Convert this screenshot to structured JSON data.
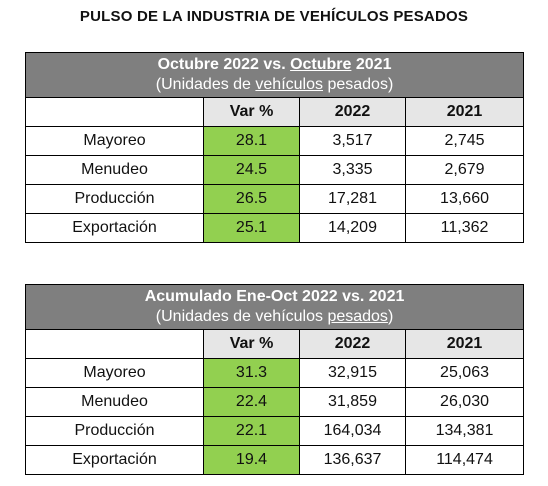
{
  "title": "PULSO DE LA INDUSTRIA DE VEHÍCULOS PESADOS",
  "tables": [
    {
      "title_prefix": "Octubre 2022 vs. ",
      "title_underlined": "Octubre",
      "title_suffix": " 2021",
      "subtitle_prefix": "(Unidades de ",
      "subtitle_underlined": "vehículos",
      "subtitle_suffix": " pesados)",
      "columns": [
        "Var %",
        "2022",
        "2021"
      ],
      "rows": [
        {
          "label": "Mayoreo",
          "var": "28.1",
          "y2022": "3,517",
          "y2021": "2,745"
        },
        {
          "label": "Menudeo",
          "var": "24.5",
          "y2022": "3,335",
          "y2021": "2,679"
        },
        {
          "label": "Producción",
          "var": "26.5",
          "y2022": "17,281",
          "y2021": "13,660"
        },
        {
          "label": "Exportación",
          "var": "25.1",
          "y2022": "14,209",
          "y2021": "11,362"
        }
      ]
    },
    {
      "title_prefix": "Acumulado Ene-Oct 2022 vs. 2021",
      "title_underlined": "",
      "title_suffix": "",
      "subtitle_prefix": "(Unidades de vehículos ",
      "subtitle_underlined": "pesados",
      "subtitle_suffix": ")",
      "columns": [
        "Var %",
        "2022",
        "2021"
      ],
      "rows": [
        {
          "label": "Mayoreo",
          "var": "31.3",
          "y2022": "32,915",
          "y2021": "25,063"
        },
        {
          "label": "Menudeo",
          "var": "22.4",
          "y2022": "31,859",
          "y2021": "26,030"
        },
        {
          "label": "Producción",
          "var": "22.1",
          "y2022": "164,034",
          "y2021": "134,381"
        },
        {
          "label": "Exportación",
          "var": "19.4",
          "y2022": "136,637",
          "y2021": "114,474"
        }
      ]
    }
  ],
  "colors": {
    "header_bg": "#7f7f7f",
    "column_header_bg": "#e6e6e6",
    "var_cell_bg": "#92d050"
  }
}
